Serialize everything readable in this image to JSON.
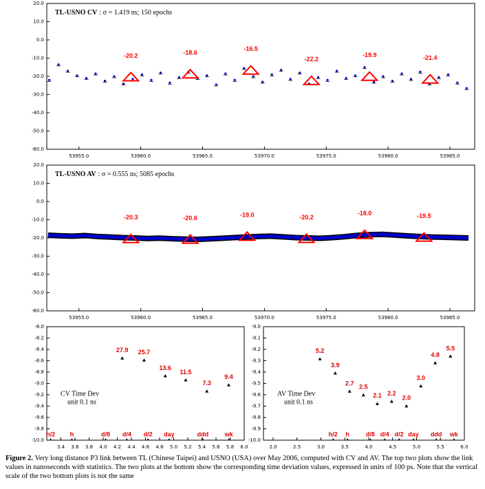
{
  "figure": {
    "caption_label": "Figure 2.",
    "caption_text": "Very long distance P3 link between TL (Chinese Taipei) and USNO (USA) over May 2006, computed with CV and AV. The top two plots show the link values in nanoseconds with statistics. The two plots at the bottom show the corresponding time deviation values, expressed in units of 100 ps. Note that the vertical scale of the two bottom plots is not the same"
  },
  "chart_data": [
    {
      "type": "scatter",
      "title": "TL-USNO CV",
      "subtitle": ": σ = 1.419 ns; 150 epochs",
      "color": "#0000cc",
      "x": [
        53952.6,
        53953.35,
        53954.1,
        53954.85,
        53955.6,
        53956.35,
        53957.1,
        53957.85,
        53958.6,
        53959.35,
        53960.1,
        53960.85,
        53961.6,
        53962.35,
        53963.1,
        53963.85,
        53964.6,
        53965.35,
        53966.1,
        53966.85,
        53967.6,
        53968.35,
        53969.1,
        53969.85,
        53970.6,
        53971.35,
        53972.1,
        53972.85,
        53973.6,
        53974.35,
        53975.1,
        53975.85,
        53976.6,
        53977.35,
        53978.1,
        53978.85,
        53979.6,
        53980.35,
        53981.1,
        53981.85,
        53982.6,
        53983.35,
        53984.1,
        53984.85,
        53985.6,
        53986.35
      ],
      "values": [
        -22,
        -13.5,
        -17,
        -19.5,
        -21,
        -18.5,
        -22.5,
        -20,
        -24,
        -21.5,
        -19,
        -22,
        -18,
        -23.5,
        -20.5,
        -17.5,
        -21,
        -19.5,
        -24.5,
        -18.5,
        -22,
        -15.5,
        -20,
        -23,
        -19,
        -16.5,
        -21.5,
        -18,
        -24,
        -20.5,
        -22,
        -17,
        -21,
        -19.5,
        -15,
        -23,
        -20,
        -22.5,
        -18.5,
        -21.5,
        -17.5,
        -24,
        -20.5,
        -19,
        -23.5,
        -26.5
      ],
      "means": {
        "color": "#ff0000",
        "x": [
          53959.2,
          53964.0,
          53968.9,
          53973.8,
          53978.5,
          53983.4
        ],
        "values": [
          -20.2,
          -18.6,
          -16.5,
          -22.2,
          -19.9,
          -21.4
        ]
      },
      "xlim": [
        53952.4,
        53987.0
      ],
      "ylim": [
        -60,
        20
      ],
      "xticks": [
        {
          "value": 53955,
          "label": "53955.0"
        },
        {
          "value": 53960,
          "label": "53960.0"
        },
        {
          "value": 53965,
          "label": "53965.0"
        },
        {
          "value": 53970,
          "label": "53970.0"
        },
        {
          "value": 53975,
          "label": "53975.0"
        },
        {
          "value": 53980,
          "label": "53980.0"
        },
        {
          "value": 53985,
          "label": "53985.0"
        }
      ],
      "yticks": [
        {
          "value": 20,
          "label": "20.0"
        },
        {
          "value": 10,
          "label": "10.0"
        },
        {
          "value": 0,
          "label": "0.0"
        },
        {
          "value": -10,
          "label": "-10.0"
        },
        {
          "value": -20,
          "label": "-20.0"
        },
        {
          "value": -30,
          "label": "-30.0"
        },
        {
          "value": -40,
          "label": "-40.0"
        },
        {
          "value": -50,
          "label": "-50.0"
        },
        {
          "value": -60,
          "label": "-60.0"
        }
      ]
    },
    {
      "type": "line",
      "title": "TL-USNO AV",
      "subtitle": ": σ = 0.555 ns; 5085 epochs",
      "color": "#0000cc",
      "x": [
        53952.5,
        53953.5,
        53954.5,
        53955.5,
        53956.5,
        53957.5,
        53958.5,
        53959.5,
        53960.5,
        53961.5,
        53962.5,
        53963.5,
        53964.5,
        53965.5,
        53966.5,
        53967.5,
        53968.5,
        53969.5,
        53970.5,
        53971.5,
        53972.5,
        53973.5,
        53974.5,
        53975.5,
        53976.5,
        53977.5,
        53978.5,
        53979.5,
        53980.5,
        53981.5,
        53982.5,
        53983.5,
        53984.5,
        53985.5,
        53986.5
      ],
      "values": [
        -18.5,
        -18.8,
        -19.0,
        -18.7,
        -19.2,
        -19.5,
        -19.8,
        -20.0,
        -20.3,
        -20.1,
        -20.4,
        -20.6,
        -20.8,
        -20.5,
        -20.2,
        -19.8,
        -19.5,
        -19.2,
        -19.0,
        -19.4,
        -19.8,
        -20.0,
        -20.2,
        -19.8,
        -19.3,
        -18.6,
        -18.2,
        -18.0,
        -18.4,
        -18.8,
        -19.2,
        -19.5,
        -19.6,
        -19.8,
        -20.0
      ],
      "means": {
        "color": "#ff0000",
        "x": [
          53959.2,
          53964.0,
          53968.6,
          53973.4,
          53978.1,
          53982.9
        ],
        "values": [
          -20.3,
          -20.6,
          -19.0,
          -20.2,
          -18.0,
          -19.5
        ],
        "value_labels": [
          "-20.3",
          "-20.6",
          "-19.0",
          "-20.2",
          "-18.0",
          "-19.5"
        ]
      },
      "xlim": [
        53952.4,
        53987.0
      ],
      "ylim": [
        -60,
        20
      ],
      "xticks": [
        {
          "value": 53955,
          "label": "53955.0"
        },
        {
          "value": 53960,
          "label": "53960.0"
        },
        {
          "value": 53965,
          "label": "53965.0"
        },
        {
          "value": 53970,
          "label": "53970.0"
        },
        {
          "value": 53975,
          "label": "53975.0"
        },
        {
          "value": 53980,
          "label": "53980.0"
        },
        {
          "value": 53985,
          "label": "53985.0"
        }
      ],
      "yticks": [
        {
          "value": 20,
          "label": "20.0"
        },
        {
          "value": 10,
          "label": "10.0"
        },
        {
          "value": 0,
          "label": "0.0"
        },
        {
          "value": -10,
          "label": "-10.0"
        },
        {
          "value": -20,
          "label": "-20.0"
        },
        {
          "value": -30,
          "label": "-30.0"
        },
        {
          "value": -40,
          "label": "-40.0"
        },
        {
          "value": -50,
          "label": "-50.0"
        },
        {
          "value": -60,
          "label": "-60.0"
        }
      ]
    },
    {
      "type": "tdev",
      "title": "CV Time Dev",
      "subtitle": "unit 0.1 ns",
      "color": "#000000",
      "x": [
        4.27,
        4.58,
        4.88,
        5.17,
        5.47,
        5.78
      ],
      "values": [
        -8.554,
        -8.59,
        -8.866,
        -8.939,
        -9.137,
        -9.027
      ],
      "point_labels": [
        "27.9",
        "25.7",
        "13.6",
        "11.5",
        "7.3",
        "9.4"
      ],
      "time_markers": {
        "labels": [
          "h/2",
          "h",
          "d/8",
          "d/4",
          "d/2",
          "day",
          "ddd",
          "wk"
        ],
        "x": [
          3.255,
          3.556,
          4.034,
          4.335,
          4.636,
          4.936,
          5.413,
          5.782
        ]
      },
      "xlim": [
        3.2,
        6.0
      ],
      "ylim": [
        -10,
        -8
      ],
      "xticks": [
        3.4,
        3.6,
        3.8,
        {
          "value": 4,
          "label": "4.0"
        },
        4.2,
        4.4,
        4.6,
        4.8,
        {
          "value": 5,
          "label": "5.0"
        },
        5.2,
        5.4,
        5.6,
        5.8,
        {
          "value": 6,
          "label": "6.0"
        }
      ],
      "yticks": [
        {
          "value": -8,
          "label": "-8.0"
        },
        -8.2,
        -8.4,
        -8.6,
        -8.8,
        {
          "value": -9,
          "label": "-9.0"
        },
        -9.2,
        -9.4,
        -9.6,
        -9.8,
        {
          "value": -10,
          "label": "-10.0"
        }
      ]
    },
    {
      "type": "tdev",
      "title": "AV Time Dev",
      "subtitle": "unit 0.1 ns",
      "color": "#000000",
      "x": [
        2.98,
        3.3,
        3.6,
        3.89,
        4.18,
        4.48,
        4.79,
        5.09,
        5.39,
        5.71
      ],
      "values": [
        -9.284,
        -9.409,
        -9.569,
        -9.602,
        -9.678,
        -9.658,
        -9.699,
        -9.523,
        -9.319,
        -9.26
      ],
      "point_labels": [
        "5.2",
        "3.9",
        "2.7",
        "2.5",
        "2.1",
        "2.2",
        "2.0",
        "3.0",
        "4.8",
        "5.5"
      ],
      "time_markers": {
        "labels": [
          "h/2",
          "h",
          "d/8",
          "d/4",
          "d/2",
          "day",
          "ddd",
          "wk"
        ],
        "x": [
          3.255,
          3.556,
          4.034,
          4.335,
          4.636,
          4.936,
          5.413,
          5.782
        ]
      },
      "xlim": [
        1.8,
        6.0
      ],
      "ylim": [
        -10,
        -9
      ],
      "xticks": [
        {
          "value": 2,
          "label": "2.0"
        },
        2.5,
        {
          "value": 3,
          "label": "3.0"
        },
        3.5,
        {
          "value": 4,
          "label": "4.0"
        },
        4.5,
        {
          "value": 5,
          "label": "5.0"
        },
        5.5,
        {
          "value": 6,
          "label": "6.0"
        }
      ],
      "yticks": [
        {
          "value": -9,
          "label": "-9.0"
        },
        -9.1,
        -9.2,
        -9.3,
        -9.4,
        -9.5,
        -9.6,
        -9.7,
        -9.8,
        -9.9,
        {
          "value": -10,
          "label": "-10.0"
        }
      ]
    }
  ]
}
